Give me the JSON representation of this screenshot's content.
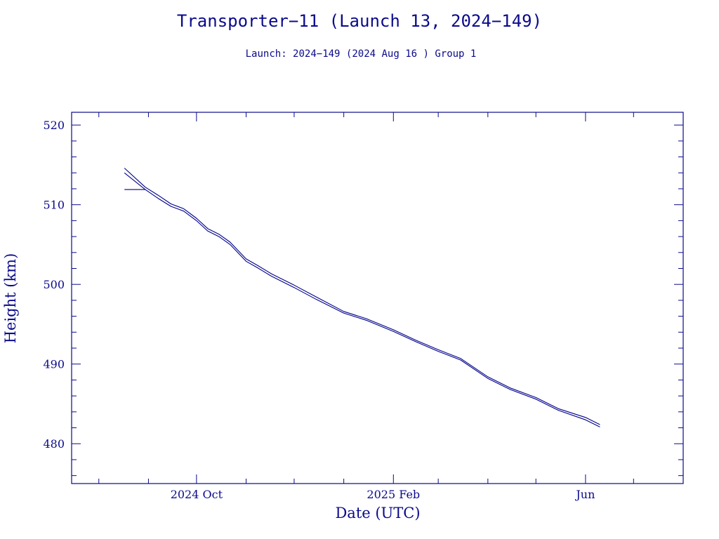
{
  "chart_data": {
    "type": "line",
    "title": "Transporter−11 (Launch 13, 2024−149)",
    "subtitle": "Launch: 2024−149  (2024 Aug 16 )  Group 1",
    "xlabel": "Date (UTC)",
    "ylabel": "Height (km)",
    "xlim": [
      "2024-07-15",
      "2025-08-01"
    ],
    "ylim": [
      475,
      521.6
    ],
    "x_tick_labels": [
      {
        "date": "2024-10-01",
        "label": "2024 Oct"
      },
      {
        "date": "2025-02-01",
        "label": "2025 Feb"
      },
      {
        "date": "2025-06-01",
        "label": "Jun"
      }
    ],
    "y_tick_labels": [
      {
        "value": 480,
        "label": "480"
      },
      {
        "value": 490,
        "label": "490"
      },
      {
        "value": 500,
        "label": "500"
      },
      {
        "value": 510,
        "label": "510"
      },
      {
        "value": 520,
        "label": "520"
      }
    ],
    "grid": false,
    "legend": "none",
    "colors": {
      "axis": "#0a0a8c",
      "line": "#00008b",
      "text": "#0a0a8c"
    },
    "series": [
      {
        "line": "upper",
        "points": [
          [
            "2024-08-17",
            514.6
          ],
          [
            "2024-08-30",
            512.2
          ],
          [
            "2024-09-07",
            511.2
          ],
          [
            "2024-09-15",
            510.1
          ],
          [
            "2024-09-23",
            509.5
          ],
          [
            "2024-10-01",
            508.3
          ],
          [
            "2024-10-08",
            507.0
          ],
          [
            "2024-10-15",
            506.3
          ],
          [
            "2024-10-22",
            505.3
          ],
          [
            "2024-11-01",
            503.2
          ],
          [
            "2024-11-08",
            502.4
          ],
          [
            "2024-11-17",
            501.3
          ],
          [
            "2024-12-01",
            499.9
          ],
          [
            "2024-12-15",
            498.4
          ],
          [
            "2025-01-01",
            496.6
          ],
          [
            "2025-01-15",
            495.7
          ],
          [
            "2025-02-01",
            494.3
          ],
          [
            "2025-02-15",
            493.0
          ],
          [
            "2025-03-01",
            491.8
          ],
          [
            "2025-03-15",
            490.7
          ],
          [
            "2025-04-01",
            488.4
          ],
          [
            "2025-04-15",
            487.0
          ],
          [
            "2025-05-01",
            485.8
          ],
          [
            "2025-05-15",
            484.4
          ],
          [
            "2025-06-01",
            483.3
          ],
          [
            "2025-06-10",
            482.4
          ]
        ]
      },
      {
        "line": "lower",
        "points": [
          [
            "2024-08-17",
            514.0
          ],
          [
            "2024-08-30",
            511.9
          ],
          [
            "2024-09-07",
            510.8
          ],
          [
            "2024-09-15",
            509.8
          ],
          [
            "2024-09-23",
            509.2
          ],
          [
            "2024-10-01",
            508.0
          ],
          [
            "2024-10-08",
            506.7
          ],
          [
            "2024-10-15",
            506.0
          ],
          [
            "2024-10-22",
            505.0
          ],
          [
            "2024-11-01",
            502.9
          ],
          [
            "2024-11-08",
            502.1
          ],
          [
            "2024-11-17",
            501.0
          ],
          [
            "2024-12-01",
            499.6
          ],
          [
            "2024-12-15",
            498.1
          ],
          [
            "2025-01-01",
            496.4
          ],
          [
            "2025-01-15",
            495.5
          ],
          [
            "2025-02-01",
            494.1
          ],
          [
            "2025-02-15",
            492.8
          ],
          [
            "2025-03-01",
            491.6
          ],
          [
            "2025-03-15",
            490.5
          ],
          [
            "2025-04-01",
            488.2
          ],
          [
            "2025-04-15",
            486.8
          ],
          [
            "2025-05-01",
            485.6
          ],
          [
            "2025-05-15",
            484.2
          ],
          [
            "2025-06-01",
            483.0
          ],
          [
            "2025-06-10",
            482.1
          ]
        ]
      },
      {
        "line": "start segment",
        "points": [
          [
            "2024-08-17",
            511.9
          ],
          [
            "2024-08-30",
            511.9
          ]
        ]
      }
    ]
  }
}
